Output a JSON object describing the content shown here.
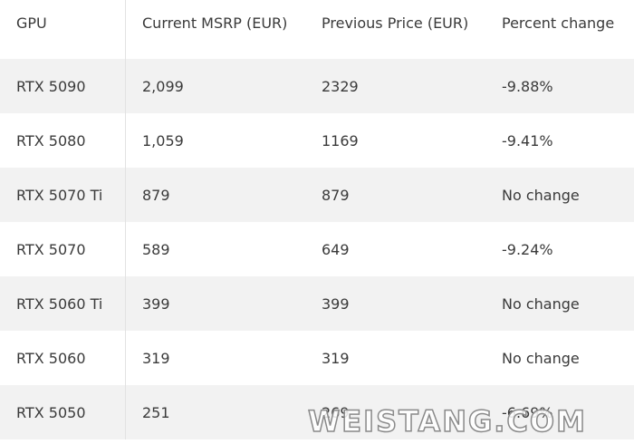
{
  "table": {
    "header": [
      "GPU",
      "Current MSRP (EUR)",
      "Previous Price (EUR)",
      "Percent change"
    ],
    "rows": [
      [
        "RTX 5090",
        "2,099",
        "2329",
        "-9.88%"
      ],
      [
        "RTX 5080",
        "1,059",
        "1169",
        "-9.41%"
      ],
      [
        "RTX 5070 Ti",
        "879",
        "879",
        "No change"
      ],
      [
        "RTX 5070",
        "589",
        "649",
        "-9.24%"
      ],
      [
        "RTX 5060 Ti",
        "399",
        "399",
        "No change"
      ],
      [
        "RTX 5060",
        "319",
        "319",
        "No change"
      ],
      [
        "RTX 5050",
        "251",
        "269",
        "-6.69%"
      ]
    ]
  },
  "watermark": "WEISTANG.COM"
}
